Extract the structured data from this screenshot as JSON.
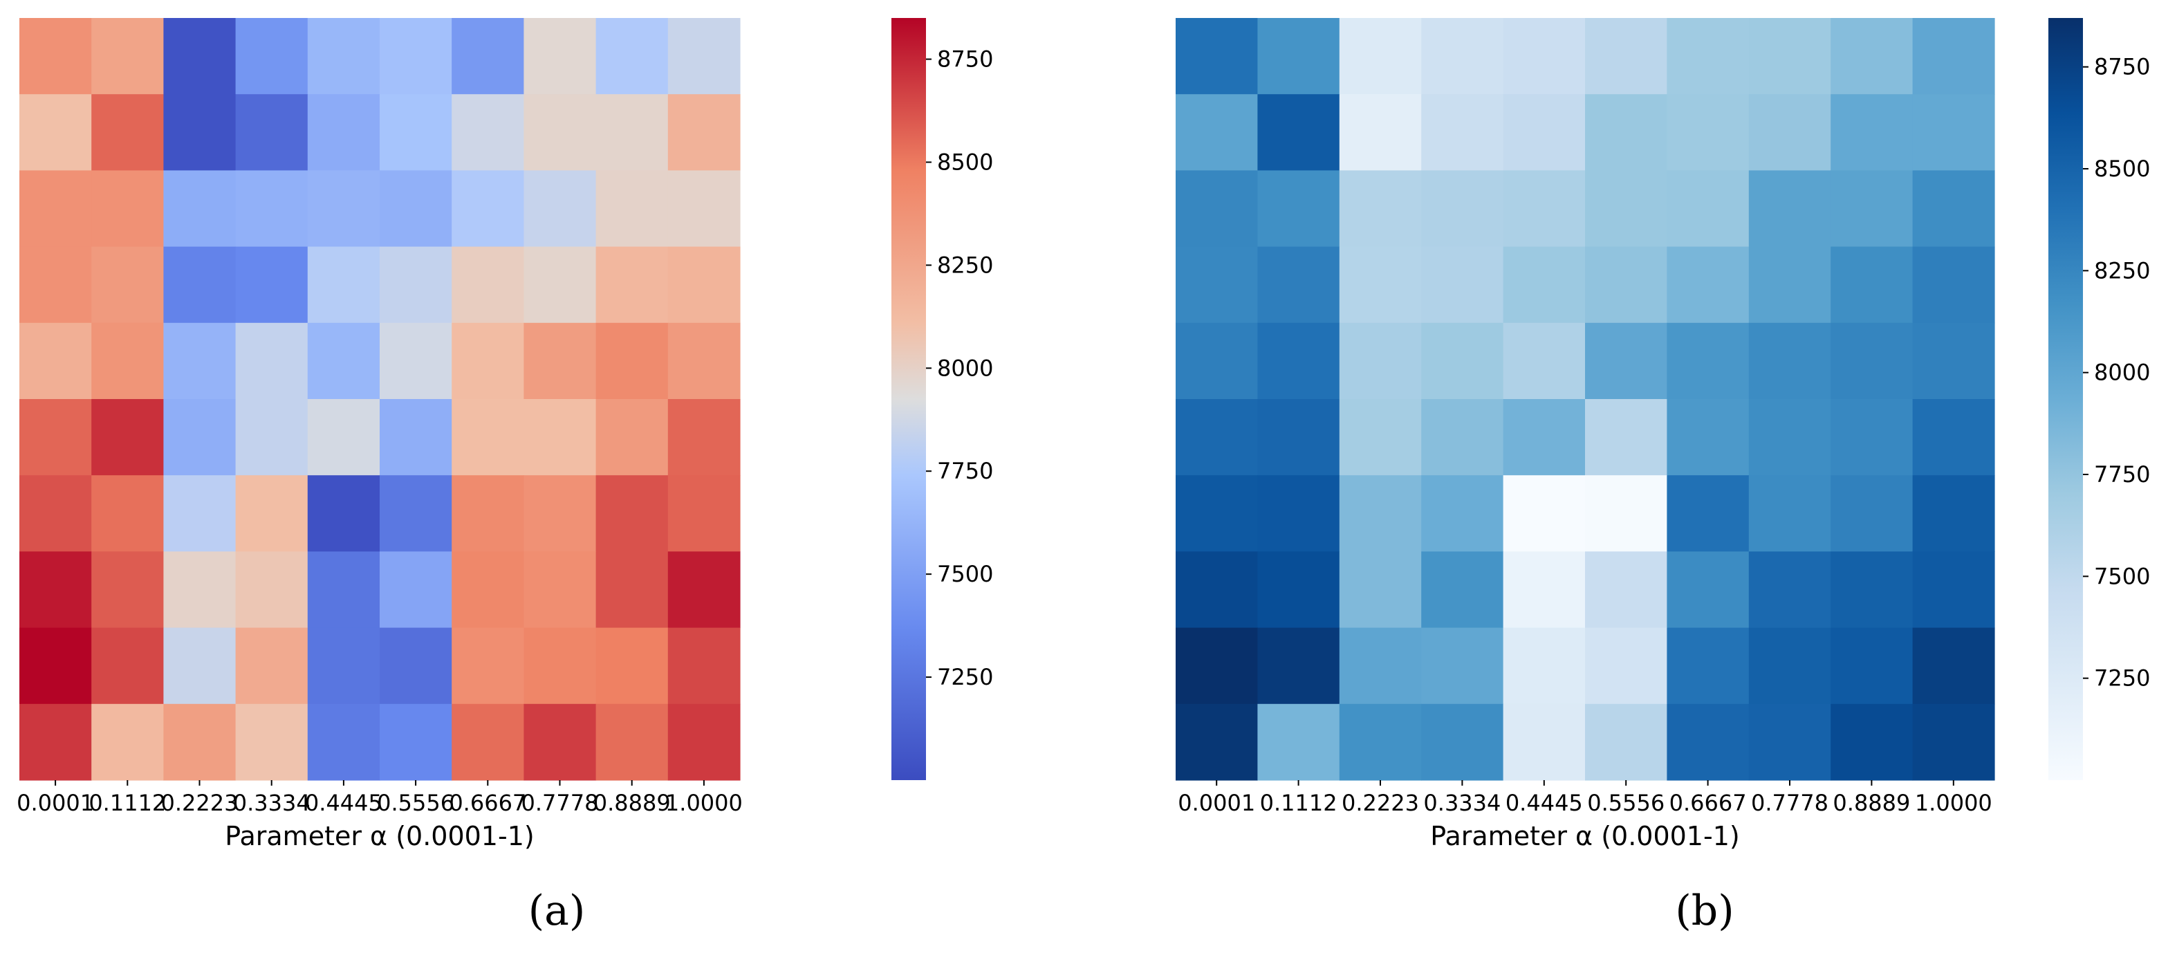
{
  "chart_data": [
    {
      "type": "heatmap",
      "panel_label": "(a)",
      "colormap": "coolwarm",
      "xlabel": "Parameter α (0.0001-1)",
      "ylabel": "",
      "x_tick_labels": [
        "0.0001",
        "0.1112",
        "0.2223",
        "0.3334",
        "0.4445",
        "0.5556",
        "0.6667",
        "0.7778",
        "0.8889",
        "1.0000"
      ],
      "y_tick_labels": [],
      "color_range": [
        7000,
        8850
      ],
      "colorbar_ticks": [
        7250,
        7500,
        7750,
        8000,
        8250,
        8500,
        8750
      ],
      "values": [
        [
          8380,
          8270,
          7040,
          7440,
          7640,
          7700,
          7460,
          7960,
          7760,
          7850
        ],
        [
          8100,
          8560,
          7040,
          7180,
          7570,
          7720,
          7870,
          7980,
          7980,
          8180
        ],
        [
          8380,
          8380,
          7580,
          7600,
          7620,
          7600,
          7760,
          7840,
          7990,
          7990
        ],
        [
          8380,
          8330,
          7330,
          7360,
          7780,
          7830,
          8020,
          7980,
          8150,
          8170
        ],
        [
          8200,
          8360,
          7620,
          7830,
          7640,
          7880,
          8120,
          8310,
          8420,
          8330
        ],
        [
          8560,
          8720,
          7590,
          7830,
          7890,
          7590,
          8110,
          8110,
          8330,
          8560
        ],
        [
          8620,
          8530,
          7800,
          8110,
          7030,
          7260,
          8420,
          8380,
          8620,
          8570
        ],
        [
          8790,
          8590,
          7990,
          8060,
          7250,
          7530,
          8440,
          8400,
          8620,
          8780
        ],
        [
          8850,
          8650,
          7850,
          8230,
          7250,
          7210,
          8400,
          8450,
          8480,
          8650
        ],
        [
          8700,
          8140,
          8300,
          8080,
          7280,
          7360,
          8540,
          8680,
          8540,
          8690
        ]
      ]
    },
    {
      "type": "heatmap",
      "panel_label": "(b)",
      "colormap": "Blues",
      "xlabel": "Parameter α (0.0001-1)",
      "ylabel": "",
      "x_tick_labels": [
        "0.0001",
        "0.1112",
        "0.2223",
        "0.3334",
        "0.4445",
        "0.5556",
        "0.6667",
        "0.7778",
        "0.8889",
        "1.0000"
      ],
      "y_tick_labels": [],
      "color_range": [
        7000,
        8870
      ],
      "colorbar_ticks": [
        7250,
        7500,
        7750,
        8000,
        8250,
        8500,
        8750
      ],
      "values": [
        [
          8400,
          8150,
          7250,
          7380,
          7420,
          7530,
          7690,
          7700,
          7810,
          8000
        ],
        [
          8020,
          8560,
          7190,
          7430,
          7480,
          7720,
          7700,
          7740,
          7980,
          7980
        ],
        [
          8250,
          8180,
          7580,
          7600,
          7620,
          7720,
          7730,
          8030,
          8030,
          8200
        ],
        [
          8240,
          8310,
          7570,
          7590,
          7710,
          7760,
          7870,
          8030,
          8190,
          8300
        ],
        [
          8300,
          8400,
          7640,
          7700,
          7600,
          8000,
          8130,
          8210,
          8260,
          8290
        ],
        [
          8460,
          8480,
          7660,
          7800,
          7900,
          7550,
          8110,
          8200,
          8240,
          8420
        ],
        [
          8580,
          8590,
          7840,
          7940,
          7000,
          7020,
          8400,
          8210,
          8290,
          8550
        ],
        [
          8700,
          8660,
          7840,
          8150,
          7120,
          7440,
          8210,
          8460,
          8520,
          8570
        ],
        [
          8870,
          8800,
          8010,
          7990,
          7240,
          7350,
          8390,
          8520,
          8570,
          8760
        ],
        [
          8820,
          7880,
          8170,
          8200,
          7250,
          7550,
          8480,
          8510,
          8680,
          8720
        ]
      ]
    }
  ]
}
